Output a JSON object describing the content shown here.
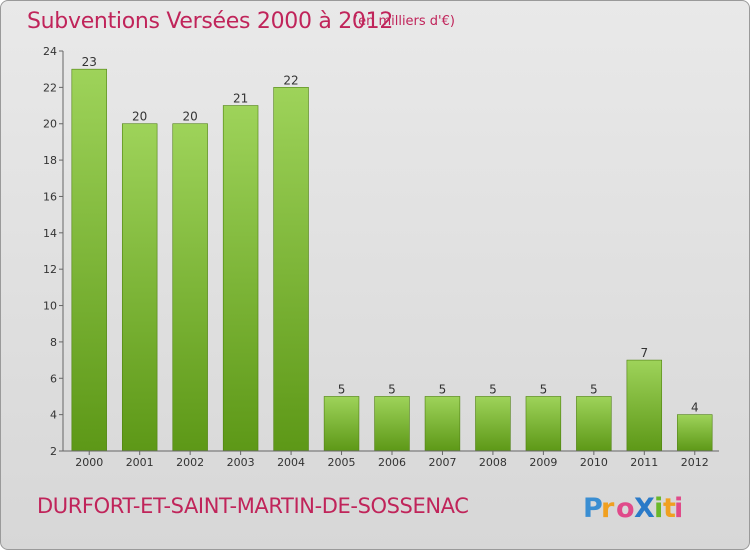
{
  "header": {
    "title": "Subventions Versées 2000 à 2012",
    "subtitle": "(en milliers d'€)"
  },
  "footer": {
    "commune": "DURFORT-ET-SAINT-MARTIN-DE-SOSSENAC",
    "logo_text": "ProXiti"
  },
  "colors": {
    "title": "#c0245a",
    "bar_top": "#9ed35a",
    "bar_bottom": "#5d9817",
    "bar_border": "#4e8010"
  },
  "chart_data": {
    "type": "bar",
    "title": "Subventions Versées 2000 à 2012",
    "subtitle": "(en milliers d'€)",
    "categories": [
      "2000",
      "2001",
      "2002",
      "2003",
      "2004",
      "2005",
      "2006",
      "2007",
      "2008",
      "2009",
      "2010",
      "2011",
      "2012"
    ],
    "values": [
      23,
      20,
      20,
      21,
      22,
      5,
      5,
      5,
      5,
      5,
      5,
      7,
      4
    ],
    "ylim": [
      2,
      24
    ],
    "yticks": [
      2,
      4,
      6,
      8,
      10,
      12,
      14,
      16,
      18,
      20,
      22,
      24
    ],
    "grid": false,
    "data_labels": true
  }
}
